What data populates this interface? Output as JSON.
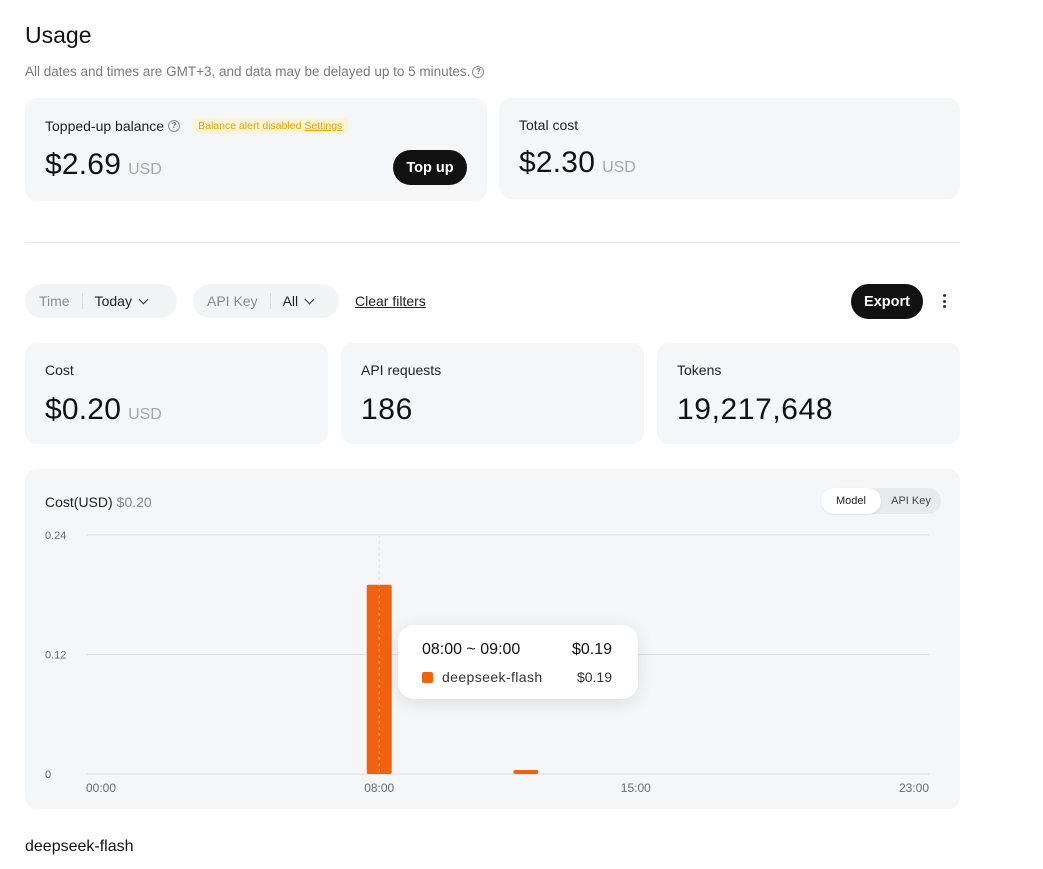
{
  "page": {
    "title": "Usage",
    "subtitle": "All dates and times are GMT+3, and data may be delayed up to 5 minutes."
  },
  "balance": {
    "label": "Topped-up balance",
    "alert_text": "Balance alert disabled",
    "alert_link": "Settings",
    "amount": "$2.69",
    "unit": "USD",
    "topup_label": "Top up"
  },
  "total_cost": {
    "label": "Total cost",
    "amount": "$2.30",
    "unit": "USD"
  },
  "filters": {
    "time_label": "Time",
    "time_value": "Today",
    "apikey_label": "API Key",
    "apikey_value": "All",
    "clear_label": "Clear filters",
    "export_label": "Export"
  },
  "stats": {
    "cost_label": "Cost",
    "cost_amount": "$0.20",
    "cost_unit": "USD",
    "requests_label": "API requests",
    "requests_value": "186",
    "tokens_label": "Tokens",
    "tokens_value": "19,217,648"
  },
  "chart": {
    "title": "Cost(USD)",
    "total": "$0.20",
    "toggle_model": "Model",
    "toggle_apikey": "API Key",
    "active_toggle": "Model",
    "tooltip": {
      "range": "08:00 ~ 09:00",
      "total": "$0.19",
      "series_name": "deepseek-flash",
      "series_value": "$0.19"
    }
  },
  "chart_data": {
    "type": "bar",
    "title": "Cost(USD)",
    "xlabel": "",
    "ylabel": "",
    "ylim": [
      0,
      0.24
    ],
    "yticks": [
      "0.24",
      "0.12",
      "0"
    ],
    "xticks": [
      "00:00",
      "08:00",
      "15:00",
      "23:00"
    ],
    "categories": [
      "00:00",
      "01:00",
      "02:00",
      "03:00",
      "04:00",
      "05:00",
      "06:00",
      "07:00",
      "08:00",
      "09:00",
      "10:00",
      "11:00",
      "12:00",
      "13:00",
      "14:00",
      "15:00",
      "16:00",
      "17:00",
      "18:00",
      "19:00",
      "20:00",
      "21:00",
      "22:00",
      "23:00"
    ],
    "series": [
      {
        "name": "deepseek-flash",
        "color": "#f0620f",
        "values": [
          0,
          0,
          0,
          0,
          0,
          0,
          0,
          0,
          0.19,
          0,
          0,
          0,
          0.004,
          0,
          0,
          0,
          0,
          0,
          0,
          0,
          0,
          0,
          0,
          0
        ]
      }
    ],
    "grid": true,
    "legend": "none"
  },
  "model_section": {
    "name": "deepseek-flash"
  }
}
